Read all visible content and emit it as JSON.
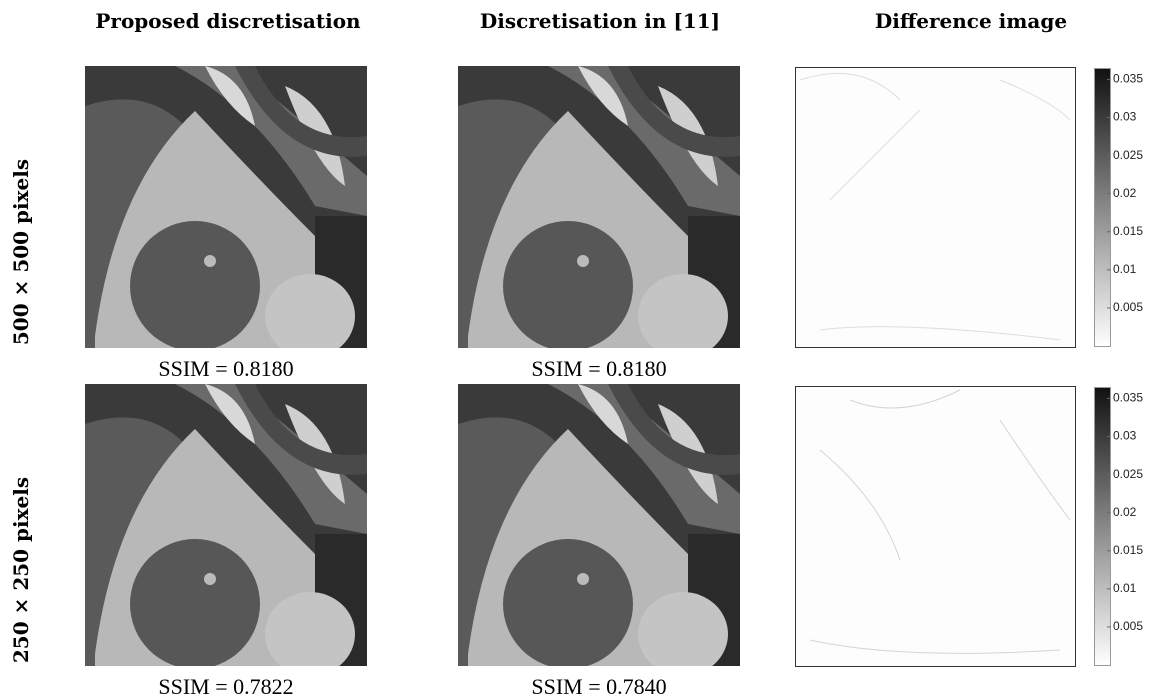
{
  "columns": [
    "Proposed discretisation",
    "Discretisation in [11]",
    "Difference image"
  ],
  "rows": [
    {
      "label": "500 × 500 pixels",
      "captions": [
        "SSIM = 0.8180",
        "SSIM = 0.8180"
      ]
    },
    {
      "label": "250 × 250 pixels",
      "captions": [
        "SSIM = 0.7822",
        "SSIM = 0.7840"
      ]
    }
  ],
  "colorbar": {
    "lim": [
      0,
      0.0365
    ],
    "ticks": [
      0.005,
      0.01,
      0.015,
      0.02,
      0.025,
      0.03,
      0.035
    ]
  }
}
